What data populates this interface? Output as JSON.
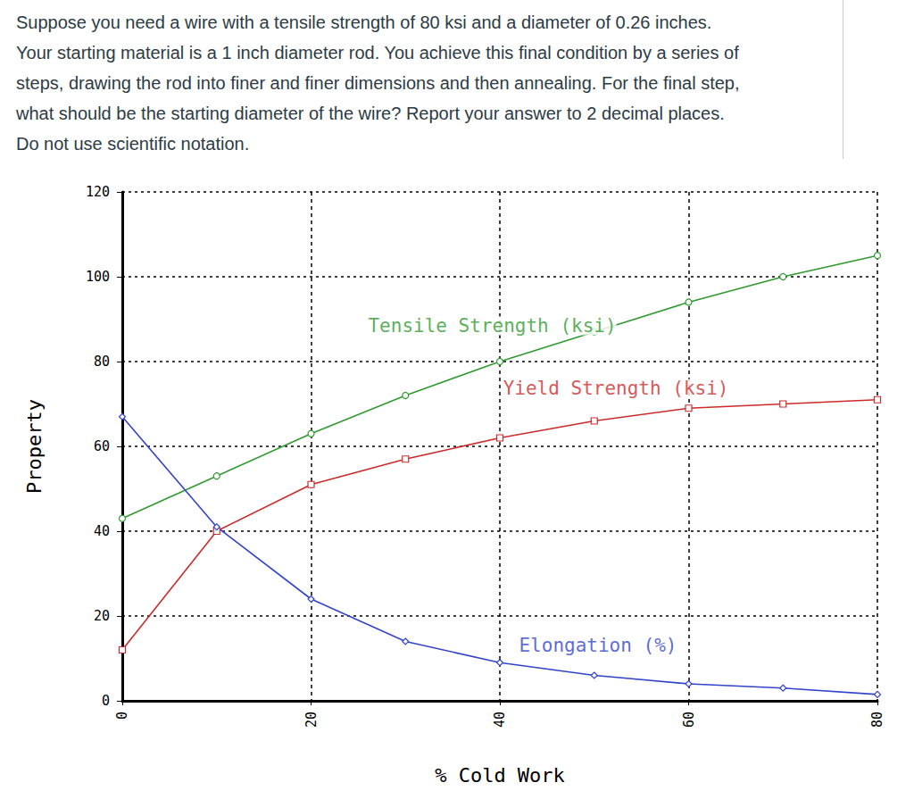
{
  "question": {
    "lines": [
      "Suppose you need a wire with a tensile strength of 80 ksi and a diameter of 0.26 inches.",
      "Your starting material is a 1 inch diameter rod.  You achieve this final condition by a series of",
      "steps, drawing the rod into finer and finer dimensions and then annealing.  For the final step,",
      "what should be the starting diameter of the wire?   Report your answer to 2 decimal places.",
      "Do not use scientific notation."
    ]
  },
  "chart_data": {
    "type": "line",
    "x_label": "% Cold Work",
    "y_label": "Property",
    "x": [
      0,
      10,
      20,
      30,
      40,
      50,
      60,
      70,
      80
    ],
    "series": [
      {
        "name": "Tensile Strength (ksi)",
        "color": "#2f9a2f",
        "marker": "circle",
        "values": [
          43,
          53,
          63,
          72,
          80,
          87,
          94,
          100,
          105
        ]
      },
      {
        "name": "Yield Strength (ksi)",
        "color": "#cc2b2b",
        "marker": "square",
        "values": [
          12,
          40,
          51,
          57,
          62,
          66,
          69,
          70,
          71
        ]
      },
      {
        "name": "Elongation (%)",
        "color": "#3344cc",
        "marker": "diamond",
        "values": [
          67,
          41,
          24,
          14,
          9,
          6,
          4,
          3,
          1.5
        ]
      }
    ],
    "annotations": [
      {
        "text": "Tensile Strength (ksi)",
        "x": 39.2,
        "y": 88.4,
        "color": "#2f9a2f"
      },
      {
        "text": "Yield Strength (ksi)",
        "x": 52.3,
        "y": 73.7,
        "color": "#cc2b2b"
      },
      {
        "text": "Elongation (%)",
        "x": 50.4,
        "y": 13.1,
        "color": "#3344cc"
      }
    ],
    "xlim": [
      0,
      80
    ],
    "xticks": [
      0,
      20,
      40,
      60,
      80
    ],
    "ylim": [
      0,
      120
    ],
    "yticks": [
      0,
      20,
      40,
      60,
      80,
      100,
      120
    ],
    "grid": true
  }
}
